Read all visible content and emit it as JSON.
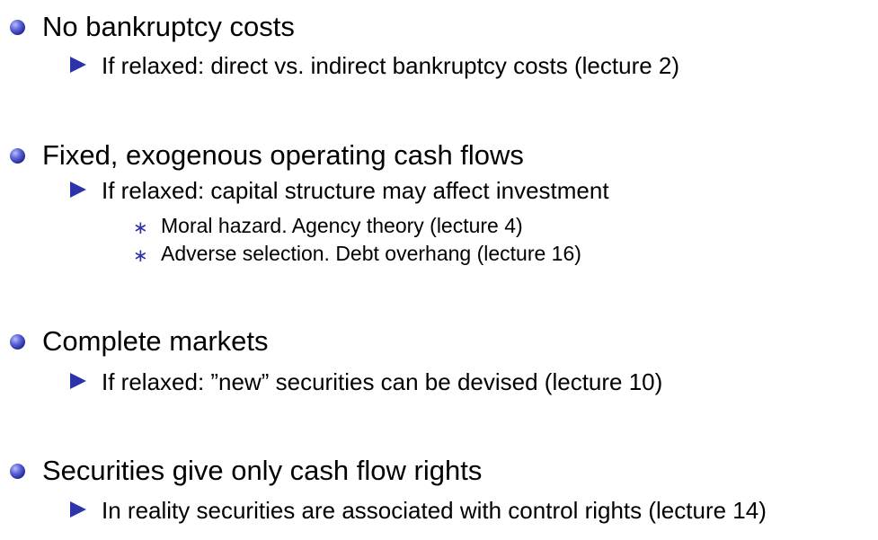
{
  "bullets": [
    {
      "text": "No bankruptcy costs",
      "icon": "ball-bullet-icon",
      "sub": [
        {
          "text": "If relaxed: direct vs. indirect bankruptcy costs (lecture 2)",
          "icon": "triangle-bullet-icon"
        }
      ]
    },
    {
      "text": "Fixed, exogenous operating cash flows",
      "icon": "ball-bullet-icon",
      "sub": [
        {
          "text": "If relaxed: capital structure may affect investment",
          "icon": "triangle-bullet-icon",
          "sub": [
            {
              "text": "Moral hazard. Agency theory (lecture 4)",
              "icon": "asterisk-bullet-icon",
              "glyph": "∗"
            },
            {
              "text": "Adverse selection. Debt overhang (lecture 16)",
              "icon": "asterisk-bullet-icon",
              "glyph": "∗"
            }
          ]
        }
      ]
    },
    {
      "text": "Complete markets",
      "icon": "ball-bullet-icon",
      "sub": [
        {
          "text": "If relaxed: ”new” securities can be devised (lecture 10)",
          "icon": "triangle-bullet-icon"
        }
      ]
    },
    {
      "text": "Securities give only cash flow rights",
      "icon": "ball-bullet-icon",
      "sub": [
        {
          "text": "In reality securities are associated with control rights (lecture 14)",
          "icon": "triangle-bullet-icon"
        }
      ]
    }
  ],
  "colors": {
    "bullet_blue": "#2d33a8",
    "text": "#000000",
    "background": "#ffffff"
  }
}
